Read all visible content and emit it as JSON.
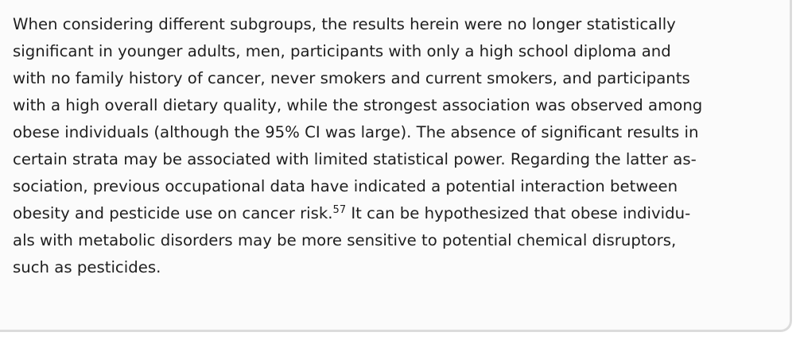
{
  "paragraph": {
    "lines": [
      "When considering different subgroups, the results herein were no longer statistically",
      "significant in younger adults, men, participants with only a high school diploma and",
      "with no family history of cancer, never smokers and current smokers, and participants",
      "with a high overall dietary quality, while the strongest association was observed among",
      "obese individuals (although the 95% CI was large). The absence of significant results in",
      "certain strata may be associated with limited statistical power. Regarding the latter as-",
      "sociation, previous occupational data have indicated a potential interaction between",
      {
        "before_citation": "obesity and pesticide use on cancer risk.",
        "citation": "57",
        "after_citation": " It can be hypothesized that obese individu-"
      },
      "als with metabolic disorders may be more sensitive to potential chemical disruptors,",
      "such as pesticides."
    ]
  }
}
